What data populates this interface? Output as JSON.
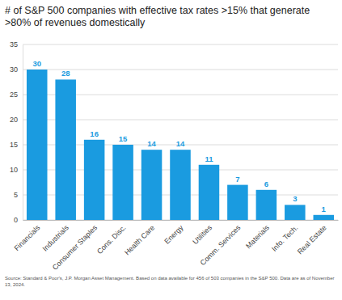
{
  "chart_data": {
    "type": "bar",
    "title": "# of S&P 500 companies with effective tax rates >15% that generate >80% of revenues domestically",
    "note": "Source: Standard & Poor's, J.P. Morgan Asset Management. Based on data available for 456 of 503 companies in the S&P 500. Data are as of November 13, 2024.",
    "categories": [
      "Financials",
      "Industrials",
      "Consumer Staples",
      "Cons. Disc.",
      "Health Care",
      "Energy",
      "Utilities",
      "Comm. Services",
      "Materials",
      "Info. Tech.",
      "Real Estate"
    ],
    "values": [
      30,
      28,
      16,
      15,
      14,
      14,
      11,
      7,
      6,
      3,
      1
    ],
    "color": "#1a9be0",
    "ylim": [
      0,
      35
    ],
    "yticks": [
      0,
      5,
      10,
      15,
      20,
      25,
      30,
      35
    ],
    "grid": true,
    "data_labels": true
  }
}
